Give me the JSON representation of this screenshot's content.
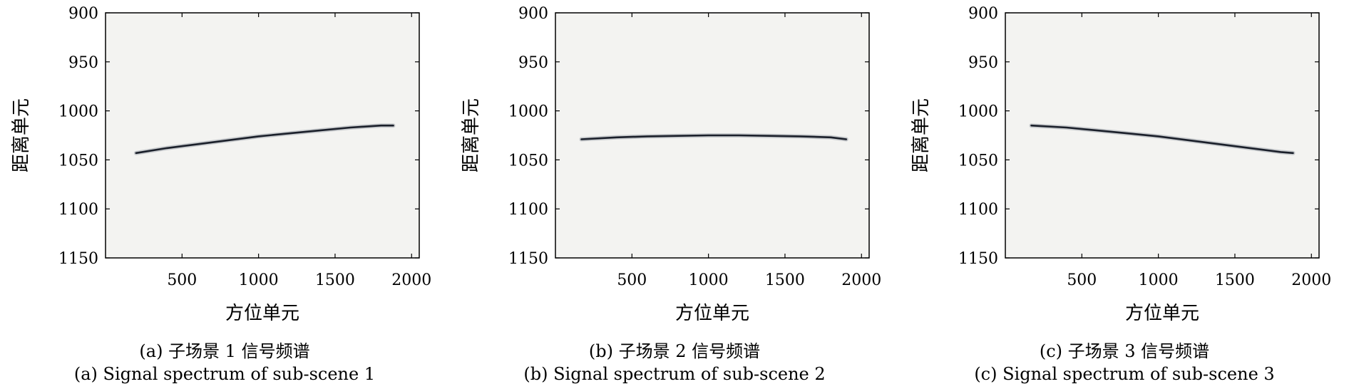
{
  "chart_data": [
    {
      "type": "line",
      "xlabel": "方位单元",
      "ylabel": "距离单元",
      "xlim": [
        0,
        2050
      ],
      "ylim": [
        1150,
        900
      ],
      "y_inverted": true,
      "x_ticks": [
        500,
        1000,
        1500,
        2000
      ],
      "y_ticks": [
        900,
        950,
        1000,
        1050,
        1100,
        1150
      ],
      "caption_cn": "(a) 子场景 1 信号频谱",
      "caption_en": "(a) Signal spectrum of sub-scene 1",
      "series": [
        {
          "x": [
            200,
            400,
            600,
            800,
            1000,
            1200,
            1400,
            1600,
            1800,
            1880
          ],
          "y": [
            1043,
            1038,
            1034,
            1030,
            1026,
            1023,
            1020,
            1017,
            1015,
            1015
          ]
        }
      ]
    },
    {
      "type": "line",
      "xlabel": "方位单元",
      "ylabel": "距离单元",
      "xlim": [
        0,
        2050
      ],
      "ylim": [
        1150,
        900
      ],
      "y_inverted": true,
      "x_ticks": [
        500,
        1000,
        1500,
        2000
      ],
      "y_ticks": [
        900,
        950,
        1000,
        1050,
        1100,
        1150
      ],
      "caption_cn": "(b) 子场景 2 信号频谱",
      "caption_en": "(b) Signal spectrum of sub-scene 2",
      "series": [
        {
          "x": [
            170,
            400,
            600,
            800,
            1000,
            1200,
            1400,
            1600,
            1800,
            1900
          ],
          "y": [
            1029,
            1027,
            1026,
            1025.5,
            1025,
            1025,
            1025.5,
            1026,
            1027,
            1029
          ]
        }
      ]
    },
    {
      "type": "line",
      "xlabel": "方位单元",
      "ylabel": "距离单元",
      "xlim": [
        0,
        2050
      ],
      "ylim": [
        1150,
        900
      ],
      "y_inverted": true,
      "x_ticks": [
        500,
        1000,
        1500,
        2000
      ],
      "y_ticks": [
        900,
        950,
        1000,
        1050,
        1100,
        1150
      ],
      "caption_cn": "(c) 子场景 3 信号频谱",
      "caption_en": "(c) Signal spectrum of sub-scene 3",
      "series": [
        {
          "x": [
            170,
            400,
            600,
            800,
            1000,
            1200,
            1400,
            1600,
            1800,
            1880
          ],
          "y": [
            1015,
            1017,
            1020,
            1023,
            1026,
            1030,
            1034,
            1038,
            1042,
            1043
          ]
        }
      ]
    }
  ]
}
